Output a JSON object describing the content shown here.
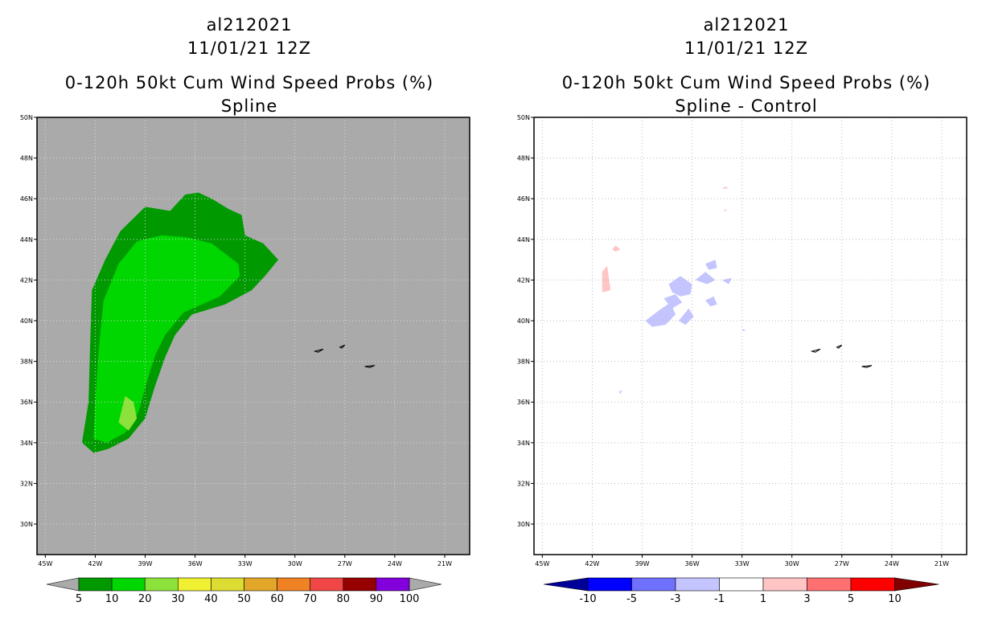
{
  "colors": {
    "land_gray": "#aaaaaa",
    "prob_levels": [
      "#009a00",
      "#00d600",
      "#8ce23a",
      "#f0f032",
      "#dcdc32",
      "#e2a628",
      "#f08224",
      "#f04646",
      "#960000",
      "#8200dc"
    ],
    "diff_levels": [
      "#000099",
      "#0000ff",
      "#7070ff",
      "#c4c4ff",
      "#ffffff",
      "#ffc4c4",
      "#ff7070",
      "#ff0000",
      "#800000"
    ]
  },
  "chart_data": [
    {
      "type": "heatmap",
      "name": "left",
      "storm_id": "al212021",
      "datetime": "11/01/21 12Z",
      "title": "0-120h 50kt Cum Wind Speed Probs (%)",
      "subtitle": "Spline",
      "xlim": [
        -45.5,
        -19.5
      ],
      "ylim": [
        28.5,
        50
      ],
      "x_ticks": [
        -45,
        -42,
        -39,
        -36,
        -33,
        -30,
        -27,
        -24,
        -21
      ],
      "x_tick_labels": [
        "45W",
        "42W",
        "39W",
        "36W",
        "33W",
        "30W",
        "27W",
        "24W",
        "21W"
      ],
      "y_ticks": [
        30,
        32,
        34,
        36,
        38,
        40,
        42,
        44,
        46,
        48,
        50
      ],
      "y_tick_labels": [
        "30N",
        "32N",
        "34N",
        "36N",
        "38N",
        "40N",
        "42N",
        "44N",
        "46N",
        "48N",
        "50N"
      ],
      "contours": [
        {
          "level": "5-10",
          "color_index": 0,
          "polygon": [
            [
              -42.8,
              34.0
            ],
            [
              -42.1,
              33.5
            ],
            [
              -41.2,
              33.7
            ],
            [
              -40.0,
              34.2
            ],
            [
              -39.0,
              35.2
            ],
            [
              -38.4,
              36.8
            ],
            [
              -37.8,
              38.2
            ],
            [
              -37.2,
              39.3
            ],
            [
              -36.2,
              40.3
            ],
            [
              -34.2,
              40.8
            ],
            [
              -32.6,
              41.5
            ],
            [
              -31.8,
              42.2
            ],
            [
              -31.0,
              43.0
            ],
            [
              -31.9,
              43.8
            ],
            [
              -33.0,
              44.2
            ],
            [
              -33.2,
              45.2
            ],
            [
              -34.0,
              45.5
            ],
            [
              -35.0,
              46.0
            ],
            [
              -35.8,
              46.3
            ],
            [
              -36.6,
              46.2
            ],
            [
              -37.5,
              45.4
            ],
            [
              -39.0,
              45.6
            ],
            [
              -40.5,
              44.4
            ],
            [
              -41.4,
              43.0
            ],
            [
              -42.2,
              41.5
            ],
            [
              -42.3,
              39.0
            ],
            [
              -42.4,
              36.0
            ]
          ]
        },
        {
          "level": "10-20",
          "color_index": 1,
          "polygon": [
            [
              -42.1,
              34.2
            ],
            [
              -41.3,
              34.0
            ],
            [
              -40.2,
              34.5
            ],
            [
              -39.4,
              35.5
            ],
            [
              -38.9,
              37.0
            ],
            [
              -38.4,
              38.3
            ],
            [
              -37.8,
              39.3
            ],
            [
              -36.7,
              40.4
            ],
            [
              -34.5,
              41.2
            ],
            [
              -33.3,
              42.2
            ],
            [
              -33.4,
              42.8
            ],
            [
              -35.0,
              43.8
            ],
            [
              -36.5,
              44.1
            ],
            [
              -38.0,
              44.2
            ],
            [
              -39.5,
              43.9
            ],
            [
              -40.6,
              42.8
            ],
            [
              -41.5,
              41.0
            ],
            [
              -41.8,
              38.5
            ],
            [
              -42.0,
              36.0
            ]
          ]
        },
        {
          "level": "20-30",
          "color_index": 2,
          "polygon": [
            [
              -40.6,
              35.0
            ],
            [
              -40.0,
              34.6
            ],
            [
              -39.5,
              35.2
            ],
            [
              -39.7,
              36.0
            ],
            [
              -40.2,
              36.3
            ]
          ]
        }
      ]
    },
    {
      "type": "heatmap",
      "name": "right",
      "storm_id": "al212021",
      "datetime": "11/01/21 12Z",
      "title": "0-120h 50kt Cum Wind Speed Probs (%)",
      "subtitle": "Spline - Control",
      "xlim": [
        -45.5,
        -19.5
      ],
      "ylim": [
        28.5,
        50
      ],
      "x_ticks": [
        -45,
        -42,
        -39,
        -36,
        -33,
        -30,
        -27,
        -24,
        -21
      ],
      "x_tick_labels": [
        "45W",
        "42W",
        "39W",
        "36W",
        "33W",
        "30W",
        "27W",
        "24W",
        "21W"
      ],
      "y_ticks": [
        30,
        32,
        34,
        36,
        38,
        40,
        42,
        44,
        46,
        48,
        50
      ],
      "y_tick_labels": [
        "30N",
        "32N",
        "34N",
        "36N",
        "38N",
        "40N",
        "42N",
        "44N",
        "46N",
        "48N",
        "50N"
      ],
      "grid": true,
      "contours": [
        {
          "level": "1-3",
          "color_index": 5,
          "polygon": [
            [
              -41.4,
              41.4
            ],
            [
              -40.9,
              41.5
            ],
            [
              -41.0,
              42.1
            ],
            [
              -41.1,
              42.7
            ],
            [
              -41.4,
              42.4
            ]
          ]
        },
        {
          "level": "1-3",
          "color_index": 5,
          "polygon": [
            [
              -40.6,
              43.4
            ],
            [
              -40.3,
              43.5
            ],
            [
              -40.6,
              43.7
            ],
            [
              -40.8,
              43.5
            ]
          ]
        },
        {
          "level": "1-3",
          "color_index": 5,
          "polygon": [
            [
              -34.2,
              46.5
            ],
            [
              -33.8,
              46.5
            ],
            [
              -34.0,
              46.6
            ]
          ]
        },
        {
          "level": "1-3",
          "color_index": 5,
          "polygon": [
            [
              -34.1,
              45.4
            ],
            [
              -33.9,
              45.4
            ],
            [
              -34.0,
              45.5
            ]
          ]
        },
        {
          "level": "-1 to -3",
          "color_index": 3,
          "polygon": [
            [
              -38.8,
              40.0
            ],
            [
              -38.0,
              40.5
            ],
            [
              -37.3,
              40.9
            ],
            [
              -37.0,
              40.3
            ],
            [
              -37.6,
              39.8
            ],
            [
              -38.4,
              39.7
            ]
          ]
        },
        {
          "level": "-1 to -3",
          "color_index": 3,
          "polygon": [
            [
              -37.7,
              41.1
            ],
            [
              -37.0,
              41.3
            ],
            [
              -36.6,
              40.9
            ],
            [
              -37.2,
              40.6
            ]
          ]
        },
        {
          "level": "-1 to -3",
          "color_index": 3,
          "polygon": [
            [
              -37.4,
              41.8
            ],
            [
              -36.7,
              42.2
            ],
            [
              -36.0,
              41.8
            ],
            [
              -36.1,
              41.3
            ],
            [
              -36.7,
              41.2
            ],
            [
              -37.2,
              41.4
            ]
          ]
        },
        {
          "level": "-1 to -3",
          "color_index": 3,
          "polygon": [
            [
              -36.8,
              40.0
            ],
            [
              -36.2,
              40.6
            ],
            [
              -35.9,
              40.2
            ],
            [
              -36.4,
              39.8
            ]
          ]
        },
        {
          "level": "-1 to -3",
          "color_index": 3,
          "polygon": [
            [
              -35.8,
              42.0
            ],
            [
              -35.2,
              42.4
            ],
            [
              -34.6,
              42.0
            ],
            [
              -35.1,
              41.8
            ]
          ]
        },
        {
          "level": "-1 to -3",
          "color_index": 3,
          "polygon": [
            [
              -35.2,
              41.0
            ],
            [
              -34.7,
              41.2
            ],
            [
              -34.5,
              40.8
            ],
            [
              -34.9,
              40.7
            ]
          ]
        },
        {
          "level": "-1 to -3",
          "color_index": 3,
          "polygon": [
            [
              -34.2,
              42.0
            ],
            [
              -33.6,
              42.1
            ],
            [
              -33.8,
              41.8
            ]
          ]
        },
        {
          "level": "-1 to -3",
          "color_index": 3,
          "polygon": [
            [
              -35.2,
              42.8
            ],
            [
              -34.6,
              43.0
            ],
            [
              -34.5,
              42.6
            ],
            [
              -35.0,
              42.5
            ]
          ]
        },
        {
          "level": "-1 to -3",
          "color_index": 3,
          "polygon": [
            [
              -40.4,
              36.5
            ],
            [
              -40.2,
              36.6
            ],
            [
              -40.3,
              36.4
            ]
          ]
        },
        {
          "level": "-1 to -3",
          "color_index": 3,
          "polygon": [
            [
              -33.0,
              39.5
            ],
            [
              -32.9,
              39.6
            ],
            [
              -32.8,
              39.5
            ]
          ]
        }
      ]
    }
  ],
  "islands": [
    [
      [
        -28.8,
        38.5
      ],
      [
        -28.3,
        38.6
      ],
      [
        -28.6,
        38.45
      ]
    ],
    [
      [
        -27.3,
        38.7
      ],
      [
        -27.0,
        38.8
      ],
      [
        -27.2,
        38.65
      ]
    ],
    [
      [
        -25.8,
        37.75
      ],
      [
        -25.2,
        37.8
      ],
      [
        -25.5,
        37.7
      ]
    ]
  ],
  "left_colorbar": {
    "labels": [
      "5",
      "10",
      "20",
      "30",
      "40",
      "50",
      "60",
      "70",
      "80",
      "90",
      "100"
    ]
  },
  "right_colorbar": {
    "labels": [
      "-10",
      "-5",
      "-3",
      "-1",
      "1",
      "3",
      "5",
      "10"
    ]
  }
}
